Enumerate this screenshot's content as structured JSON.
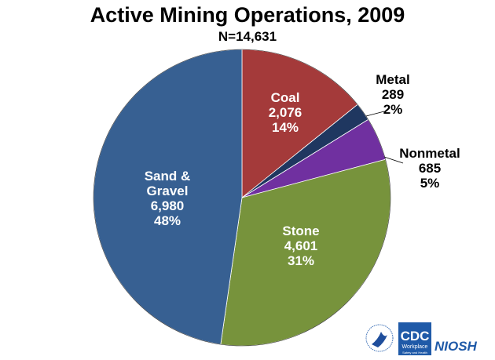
{
  "chart_data": {
    "type": "pie",
    "title": "Active Mining Operations, 2009",
    "subtitle": "N=14,631",
    "slices": [
      {
        "label": "Coal",
        "value": 2076,
        "value_text": "2,076",
        "percent_text": "14%",
        "color": "#A43A3A",
        "label_position": "inside"
      },
      {
        "label": "Metal",
        "value": 289,
        "value_text": "289",
        "percent_text": "2%",
        "color": "#1F3760",
        "label_position": "outside"
      },
      {
        "label": "Nonmetal",
        "value": 685,
        "value_text": "685",
        "percent_text": "5%",
        "color": "#7030A0",
        "label_position": "outside"
      },
      {
        "label": "Stone",
        "value": 4601,
        "value_text": "4,601",
        "percent_text": "31%",
        "color": "#77933C",
        "label_position": "inside"
      },
      {
        "label": "Sand & Gravel",
        "value": 6980,
        "value_text": "6,980",
        "percent_text": "48%",
        "color": "#376092",
        "label_position": "inside"
      }
    ],
    "start_angle": "12 o'clock",
    "direction": "clockwise"
  },
  "logos": {
    "hhs": "HHS eagle seal",
    "cdc": "CDC Workplace Safety and Health",
    "niosh": "NIOSH"
  }
}
